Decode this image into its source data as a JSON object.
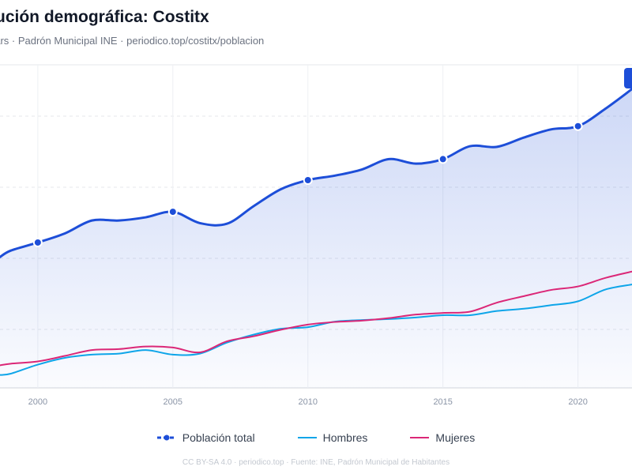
{
  "chart_data": {
    "type": "line",
    "title": "ución demográfica: Costitx",
    "subtitle": "ears · Padrón Municipal INE · periodico.top/costitx/poblacion",
    "x_ticks": [
      "2000",
      "2005",
      "2010",
      "2015",
      "2020"
    ],
    "xlim": [
      1998.6,
      2022
    ],
    "ylim": [
      0,
      1000
    ],
    "x": [
      1998.6,
      1999,
      2000,
      2001,
      2002,
      2003,
      2004,
      2005,
      2006,
      2007,
      2008,
      2009,
      2010,
      2011,
      2012,
      2013,
      2014,
      2015,
      2016,
      2017,
      2018,
      2019,
      2020,
      2021,
      2022
    ],
    "series": [
      {
        "name": "Población total",
        "color": "#1d4ed8",
        "values": [
          405,
          425,
          450,
          478,
          518,
          518,
          528,
          545,
          510,
          508,
          563,
          615,
          643,
          657,
          676,
          708,
          694,
          708,
          748,
          746,
          775,
          800,
          810,
          863,
          925
        ],
        "markers_x": [
          2000,
          2005,
          2010,
          2015,
          2020
        ]
      },
      {
        "name": "Hombres",
        "color": "#0ea5e9",
        "values": [
          40,
          44,
          72,
          93,
          103,
          106,
          117,
          103,
          106,
          140,
          165,
          183,
          188,
          205,
          210,
          213,
          218,
          225,
          225,
          238,
          245,
          256,
          268,
          304,
          320
        ]
      },
      {
        "name": "Mujeres",
        "color": "#db2777",
        "values": [
          70,
          75,
          82,
          99,
          117,
          120,
          128,
          125,
          110,
          144,
          160,
          180,
          196,
          204,
          208,
          216,
          227,
          232,
          236,
          264,
          284,
          303,
          314,
          340,
          360
        ]
      }
    ]
  },
  "footer": "CC BY-SA 4.0 · periodico.top · Fuente: INE, Padrón Municipal de Habitantes"
}
